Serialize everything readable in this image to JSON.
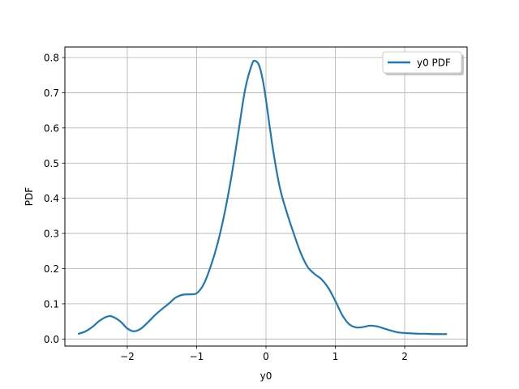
{
  "chart_data": {
    "type": "line",
    "title": "",
    "xlabel": "y0",
    "ylabel": "PDF",
    "xlim": [
      -2.9,
      2.9
    ],
    "ylim": [
      -0.02,
      0.83
    ],
    "xticks": [
      -2,
      -1,
      0,
      1,
      2
    ],
    "xtick_labels": [
      "−2",
      "−1",
      "0",
      "1",
      "2"
    ],
    "yticks": [
      0.0,
      0.1,
      0.2,
      0.3,
      0.4,
      0.5,
      0.6,
      0.7,
      0.8
    ],
    "ytick_labels": [
      "0.0",
      "0.1",
      "0.2",
      "0.3",
      "0.4",
      "0.5",
      "0.6",
      "0.7",
      "0.8"
    ],
    "grid": true,
    "legend_position": "top-right",
    "series": [
      {
        "name": "y0 PDF",
        "color": "#1f77b4",
        "x": [
          -2.7,
          -2.6,
          -2.5,
          -2.4,
          -2.3,
          -2.22,
          -2.1,
          -2.0,
          -1.9,
          -1.8,
          -1.7,
          -1.6,
          -1.5,
          -1.4,
          -1.3,
          -1.2,
          -1.1,
          -1.0,
          -0.9,
          -0.8,
          -0.7,
          -0.6,
          -0.5,
          -0.4,
          -0.3,
          -0.2,
          -0.15,
          -0.1,
          -0.05,
          0.0,
          0.1,
          0.2,
          0.3,
          0.4,
          0.5,
          0.6,
          0.7,
          0.8,
          0.9,
          1.0,
          1.1,
          1.2,
          1.3,
          1.4,
          1.5,
          1.6,
          1.7,
          1.8,
          1.9,
          2.0,
          2.1,
          2.2,
          2.3,
          2.4,
          2.5,
          2.6
        ],
        "y": [
          0.015,
          0.022,
          0.035,
          0.052,
          0.063,
          0.064,
          0.05,
          0.03,
          0.022,
          0.03,
          0.048,
          0.068,
          0.085,
          0.101,
          0.118,
          0.126,
          0.127,
          0.13,
          0.155,
          0.205,
          0.27,
          0.355,
          0.46,
          0.585,
          0.71,
          0.782,
          0.79,
          0.778,
          0.74,
          0.68,
          0.54,
          0.43,
          0.36,
          0.3,
          0.245,
          0.205,
          0.185,
          0.17,
          0.145,
          0.108,
          0.068,
          0.042,
          0.033,
          0.034,
          0.038,
          0.036,
          0.03,
          0.024,
          0.019,
          0.017,
          0.016,
          0.015,
          0.015,
          0.014,
          0.014,
          0.014
        ]
      }
    ]
  }
}
